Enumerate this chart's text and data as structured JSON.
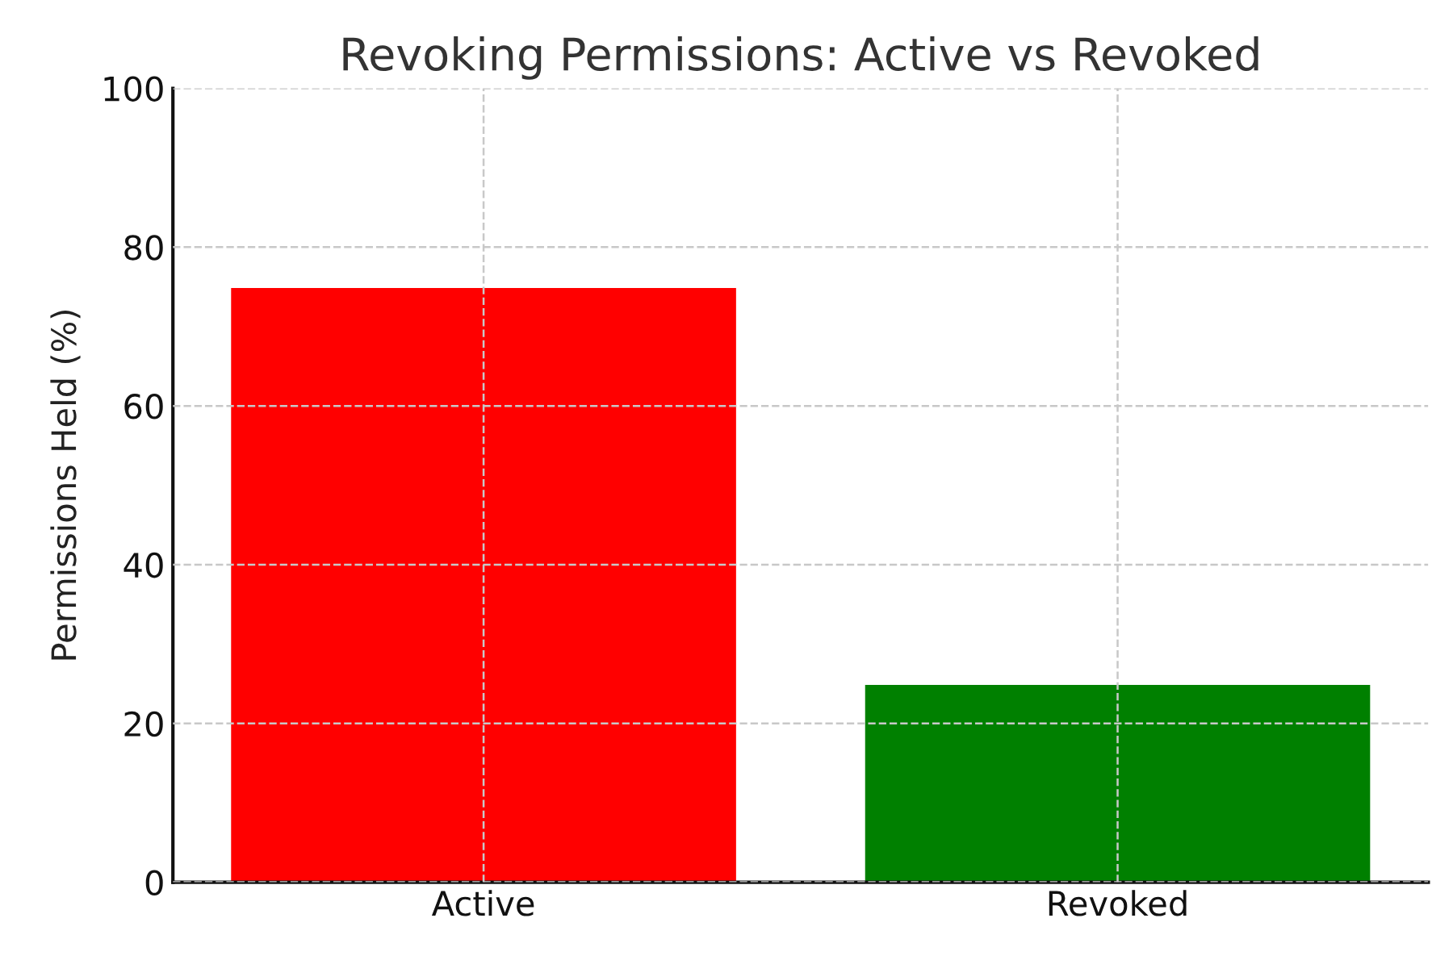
{
  "chart_data": {
    "type": "bar",
    "title": "Revoking Permissions: Active vs Revoked",
    "ylabel": "Permissions Held (%)",
    "categories": [
      "Active",
      "Revoked"
    ],
    "values": [
      75,
      25
    ],
    "colors": [
      "#ff0000",
      "#008000"
    ],
    "ylim": [
      0,
      100
    ],
    "yticks": [
      0,
      20,
      40,
      60,
      80,
      100
    ],
    "grid": true
  }
}
